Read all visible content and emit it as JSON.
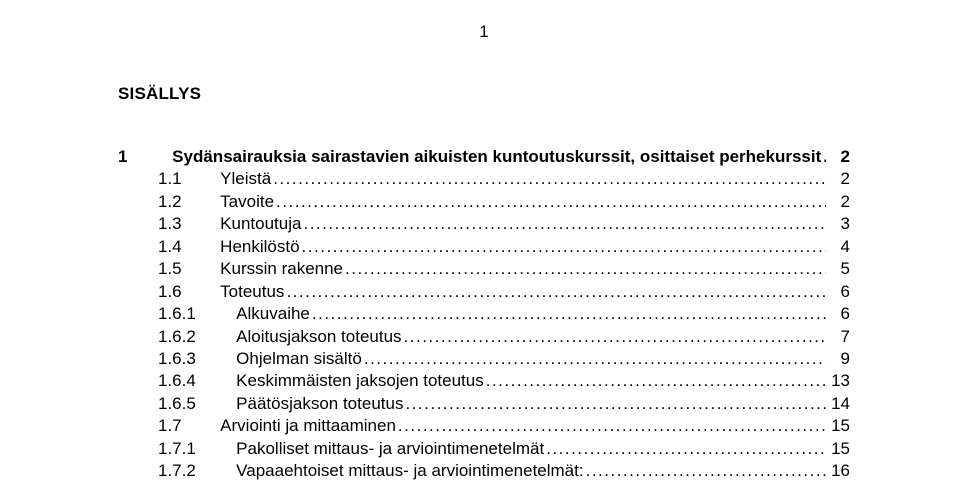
{
  "page_number_top": "1",
  "heading": "SISÄLLYS",
  "toc": [
    {
      "level": 1,
      "num": "1",
      "label": "Sydänsairauksia sairastavien aikuisten kuntoutuskurssit, osittaiset perhekurssit",
      "page": "2",
      "bold": true
    },
    {
      "level": 2,
      "num": "1.1",
      "label": "Yleistä",
      "page": "2",
      "bold": false
    },
    {
      "level": 2,
      "num": "1.2",
      "label": "Tavoite",
      "page": "2",
      "bold": false
    },
    {
      "level": 2,
      "num": "1.3",
      "label": "Kuntoutuja",
      "page": "3",
      "bold": false
    },
    {
      "level": 2,
      "num": "1.4",
      "label": "Henkilöstö",
      "page": "4",
      "bold": false
    },
    {
      "level": 2,
      "num": "1.5",
      "label": "Kurssin rakenne",
      "page": "5",
      "bold": false
    },
    {
      "level": 2,
      "num": "1.6",
      "label": "Toteutus",
      "page": "6",
      "bold": false
    },
    {
      "level": 3,
      "num": "1.6.1",
      "label": "Alkuvaihe",
      "page": "6",
      "bold": false
    },
    {
      "level": 3,
      "num": "1.6.2",
      "label": "Aloitusjakson toteutus",
      "page": "7",
      "bold": false
    },
    {
      "level": 3,
      "num": "1.6.3",
      "label": "Ohjelman sisältö",
      "page": "9",
      "bold": false
    },
    {
      "level": 3,
      "num": "1.6.4",
      "label": "Keskimmäisten jaksojen toteutus",
      "page": "13",
      "bold": false
    },
    {
      "level": 3,
      "num": "1.6.5",
      "label": "Päätösjakson toteutus",
      "page": "14",
      "bold": false
    },
    {
      "level": 2,
      "num": "1.7",
      "label": "Arviointi ja mittaaminen",
      "page": "15",
      "bold": false
    },
    {
      "level": 3,
      "num": "1.7.1",
      "label": "Pakolliset mittaus- ja arviointimenetelmät",
      "page": "15",
      "bold": false
    },
    {
      "level": 3,
      "num": "1.7.2",
      "label": "Vapaaehtoiset mittaus- ja arviointimenetelmät:",
      "page": "16",
      "bold": false
    }
  ],
  "colors": {
    "background": "#ffffff",
    "text": "#000000"
  },
  "font": {
    "family": "Arial",
    "base_size_pt": 13
  }
}
